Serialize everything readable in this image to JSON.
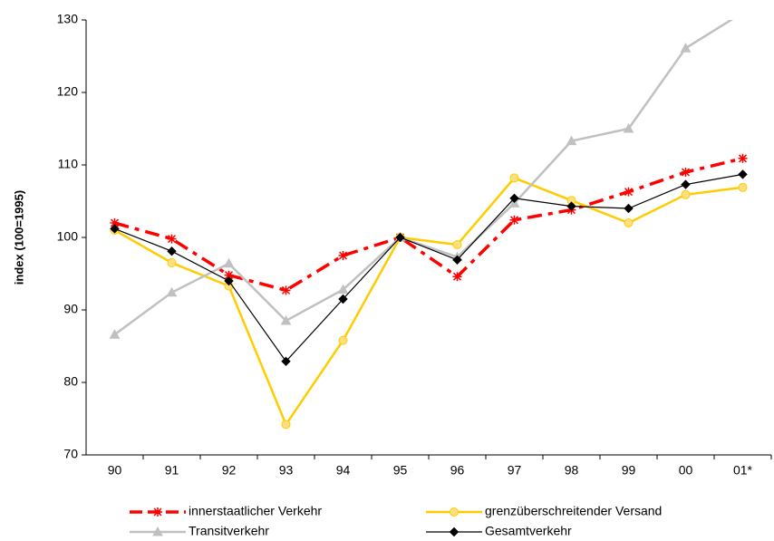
{
  "chart_data": {
    "type": "line",
    "y_label": "index (100=1995)",
    "categories": [
      "90",
      "91",
      "92",
      "93",
      "94",
      "95",
      "96",
      "97",
      "98",
      "99",
      "00",
      "01*"
    ],
    "ylim": [
      70,
      130
    ],
    "yticks": [
      70,
      80,
      90,
      100,
      110,
      120,
      130
    ],
    "series": [
      {
        "name": "innerstaatlicher Verkehr",
        "color": "#ff0000",
        "marker": "star",
        "dash": true,
        "values": [
          102,
          99.8,
          94.8,
          92.7,
          97.5,
          100,
          94.6,
          102.4,
          103.8,
          106.3,
          109,
          110.9
        ]
      },
      {
        "name": "grenzüberschreitender Versand",
        "color": "#ffcc00",
        "marker": "circle",
        "dash": false,
        "values": [
          101,
          96.5,
          93.3,
          74.2,
          85.8,
          100,
          99,
          108.2,
          105.1,
          102,
          105.9,
          106.9
        ]
      },
      {
        "name": "Transitverkehr",
        "color": "#c0c0c0",
        "marker": "triangle",
        "dash": false,
        "values": [
          86.6,
          92.4,
          96.4,
          88.5,
          92.8,
          100,
          97.3,
          104.7,
          113.3,
          115,
          126.1,
          131
        ]
      },
      {
        "name": "Gesamtverkehr",
        "color": "#000000",
        "marker": "diamond",
        "dash": false,
        "values": [
          101.2,
          98.1,
          94,
          82.9,
          91.5,
          100,
          96.9,
          105.4,
          104.3,
          104,
          107.3,
          108.7
        ]
      }
    ]
  }
}
